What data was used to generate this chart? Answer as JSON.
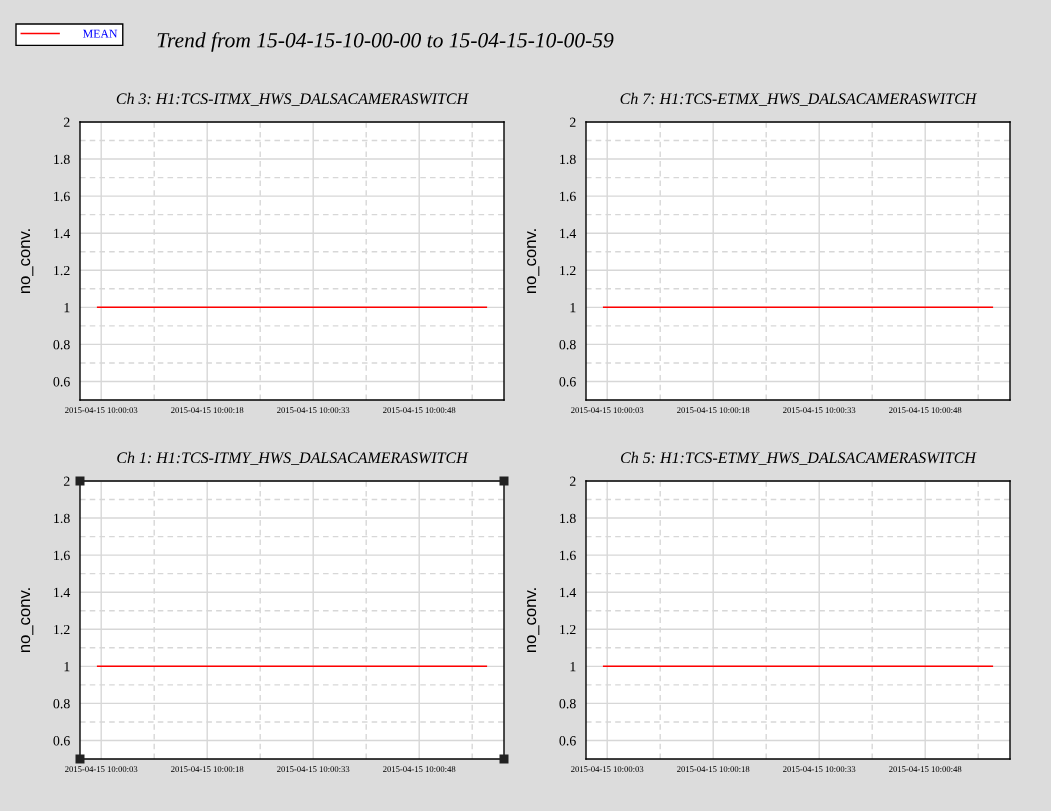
{
  "chart_data": [
    {
      "type": "line",
      "title": "Ch 3: H1:TCS-ITMX_HWS_DALSACAMERASWITCH",
      "ylabel": "no_conv.",
      "annotations": [
        "Trend from 15-04-15-10-00-00 to 15-04-15-10-00-59"
      ],
      "series": [
        {
          "name": "MEAN",
          "color": "#ff0000",
          "x": [
            "2015-04-15T10:00:02.500",
            "2015-04-15T10:00:57.500"
          ],
          "values": [
            1,
            1
          ]
        }
      ],
      "xlim": [
        "2015-04-15T10:00:00",
        "2015-04-15T10:01:00"
      ],
      "xticks": [
        {
          "value": "2015-04-15T10:00:03",
          "label": "2015-04-15 10:00:03"
        },
        {
          "value": "2015-04-15T10:00:10.500",
          "label": null
        },
        {
          "value": "2015-04-15T10:00:18",
          "label": "2015-04-15 10:00:18"
        },
        {
          "value": "2015-04-15T10:00:25.500",
          "label": null
        },
        {
          "value": "2015-04-15T10:00:33",
          "label": "2015-04-15 10:00:33"
        },
        {
          "value": "2015-04-15T10:00:40.500",
          "label": null
        },
        {
          "value": "2015-04-15T10:00:48",
          "label": "2015-04-15 10:00:48"
        },
        {
          "value": "2015-04-15T10:00:55.500",
          "label": null
        }
      ],
      "ylim": [
        0.5,
        2
      ],
      "yticks": [
        0.6,
        {
          "value": 0.7,
          "label": null
        },
        0.8,
        {
          "value": 0.9,
          "label": null
        },
        1,
        {
          "value": 1.1,
          "label": null
        },
        1.2,
        {
          "value": 1.3,
          "label": null
        },
        1.4,
        {
          "value": 1.5,
          "label": null
        },
        1.6,
        {
          "value": 1.7,
          "label": null
        },
        1.8,
        {
          "value": 1.9,
          "label": null
        },
        2
      ],
      "grid": true,
      "legend": "top left",
      "marker": "none",
      "line_style": "solid"
    },
    {
      "type": "line",
      "title": "Ch 7: H1:TCS-ETMX_HWS_DALSACAMERASWITCH",
      "ylabel": "no_conv.",
      "series": [
        {
          "color": "#ff0000",
          "x": [
            "2015-04-15T10:00:02.500",
            "2015-04-15T10:00:57.500"
          ],
          "values": [
            1,
            1
          ]
        }
      ],
      "xlim": [
        "2015-04-15T10:00:00",
        "2015-04-15T10:01:00"
      ],
      "xticks": [
        {
          "value": "2015-04-15T10:00:03",
          "label": "2015-04-15 10:00:03"
        },
        {
          "value": "2015-04-15T10:00:10.500",
          "label": null
        },
        {
          "value": "2015-04-15T10:00:18",
          "label": "2015-04-15 10:00:18"
        },
        {
          "value": "2015-04-15T10:00:25.500",
          "label": null
        },
        {
          "value": "2015-04-15T10:00:33",
          "label": "2015-04-15 10:00:33"
        },
        {
          "value": "2015-04-15T10:00:40.500",
          "label": null
        },
        {
          "value": "2015-04-15T10:00:48",
          "label": "2015-04-15 10:00:48"
        },
        {
          "value": "2015-04-15T10:00:55.500",
          "label": null
        }
      ],
      "ylim": [
        0.5,
        2
      ],
      "yticks": [
        0.6,
        {
          "value": 0.7,
          "label": null
        },
        0.8,
        {
          "value": 0.9,
          "label": null
        },
        1,
        {
          "value": 1.1,
          "label": null
        },
        1.2,
        {
          "value": 1.3,
          "label": null
        },
        1.4,
        {
          "value": 1.5,
          "label": null
        },
        1.6,
        {
          "value": 1.7,
          "label": null
        },
        1.8,
        {
          "value": 1.9,
          "label": null
        },
        2
      ],
      "grid": true,
      "marker": "none",
      "line_style": "solid"
    },
    {
      "type": "line",
      "title": "Ch 1: H1:TCS-ITMY_HWS_DALSACAMERASWITCH",
      "ylabel": "no_conv.",
      "series": [
        {
          "color": "#ff0000",
          "x": [
            "2015-04-15T10:00:02.500",
            "2015-04-15T10:00:57.500"
          ],
          "values": [
            1,
            1
          ]
        }
      ],
      "xlim": [
        "2015-04-15T10:00:00",
        "2015-04-15T10:01:00"
      ],
      "xticks": [
        {
          "value": "2015-04-15T10:00:03",
          "label": "2015-04-15 10:00:03"
        },
        {
          "value": "2015-04-15T10:00:10.500",
          "label": null
        },
        {
          "value": "2015-04-15T10:00:18",
          "label": "2015-04-15 10:00:18"
        },
        {
          "value": "2015-04-15T10:00:25.500",
          "label": null
        },
        {
          "value": "2015-04-15T10:00:33",
          "label": "2015-04-15 10:00:33"
        },
        {
          "value": "2015-04-15T10:00:40.500",
          "label": null
        },
        {
          "value": "2015-04-15T10:00:48",
          "label": "2015-04-15 10:00:48"
        },
        {
          "value": "2015-04-15T10:00:55.500",
          "label": null
        }
      ],
      "ylim": [
        0.5,
        2
      ],
      "yticks": [
        0.6,
        {
          "value": 0.7,
          "label": null
        },
        0.8,
        {
          "value": 0.9,
          "label": null
        },
        1,
        {
          "value": 1.1,
          "label": null
        },
        1.2,
        {
          "value": 1.3,
          "label": null
        },
        1.4,
        {
          "value": 1.5,
          "label": null
        },
        1.6,
        {
          "value": 1.7,
          "label": null
        },
        1.8,
        {
          "value": 1.9,
          "label": null
        },
        2
      ],
      "grid": true,
      "marker": "none",
      "line_style": "solid"
    },
    {
      "type": "line",
      "title": "Ch 5: H1:TCS-ETMY_HWS_DALSACAMERASWITCH",
      "ylabel": "no_conv.",
      "series": [
        {
          "color": "#ff0000",
          "x": [
            "2015-04-15T10:00:02.500",
            "2015-04-15T10:00:57.500"
          ],
          "values": [
            1,
            1
          ]
        }
      ],
      "xlim": [
        "2015-04-15T10:00:00",
        "2015-04-15T10:01:00"
      ],
      "xticks": [
        {
          "value": "2015-04-15T10:00:03",
          "label": "2015-04-15 10:00:03"
        },
        {
          "value": "2015-04-15T10:00:10.500",
          "label": null
        },
        {
          "value": "2015-04-15T10:00:18",
          "label": "2015-04-15 10:00:18"
        },
        {
          "value": "2015-04-15T10:00:25.500",
          "label": null
        },
        {
          "value": "2015-04-15T10:00:33",
          "label": "2015-04-15 10:00:33"
        },
        {
          "value": "2015-04-15T10:00:40.500",
          "label": null
        },
        {
          "value": "2015-04-15T10:00:48",
          "label": "2015-04-15 10:00:48"
        },
        {
          "value": "2015-04-15T10:00:55.500",
          "label": null
        }
      ],
      "ylim": [
        0.5,
        2
      ],
      "yticks": [
        0.6,
        {
          "value": 0.7,
          "label": null
        },
        0.8,
        {
          "value": 0.9,
          "label": null
        },
        1,
        {
          "value": 1.1,
          "label": null
        },
        1.2,
        {
          "value": 1.3,
          "label": null
        },
        1.4,
        {
          "value": 1.5,
          "label": null
        },
        1.6,
        {
          "value": 1.7,
          "label": null
        },
        1.8,
        {
          "value": 1.9,
          "label": null
        },
        2
      ],
      "grid": true,
      "marker": "none",
      "line_style": "solid"
    }
  ]
}
